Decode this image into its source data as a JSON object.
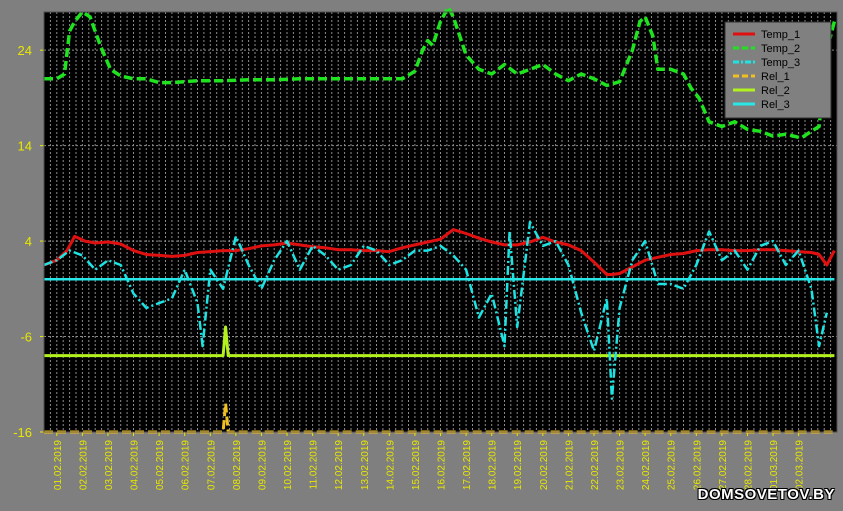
{
  "chart_data": {
    "type": "line",
    "title": "",
    "xlabel": "",
    "ylabel": "",
    "ylim": [
      -16,
      28
    ],
    "yticks": [
      24,
      14,
      4,
      -6,
      -16
    ],
    "xlim": [
      0,
      31
    ],
    "xticks": [
      "01.02.2019",
      "02.02.2019",
      "03.02.2019",
      "04.02.2019",
      "05.02.2019",
      "06.02.2019",
      "07.02.2019",
      "08.02.2019",
      "09.02.2019",
      "10.02.2019",
      "11.02.2019",
      "12.02.2019",
      "13.02.2019",
      "14.02.2019",
      "15.02.2019",
      "16.02.2019",
      "17.02.2019",
      "18.02.2019",
      "19.02.2019",
      "20.02.2019",
      "21.02.2019",
      "22.02.2019",
      "23.02.2019",
      "24.02.2019",
      "25.02.2019",
      "26.02.2019",
      "27.02.2019",
      "28.02.2019",
      "01.03.2019",
      "02.03.2019"
    ],
    "legend_position": "top-right",
    "background": "#000000",
    "grid_color": "#8c8c8c",
    "tick_label_color": "#e8e800",
    "series": [
      {
        "name": "Temp_1",
        "color": "#e01010",
        "dash": "solid",
        "x": [
          0,
          0.5,
          0.9,
          1.2,
          1.6,
          2.0,
          2.5,
          3.0,
          3.5,
          4.0,
          4.5,
          5.0,
          5.5,
          6.0,
          6.5,
          7.0,
          7.5,
          8.0,
          8.5,
          9.0,
          9.5,
          10.0,
          10.5,
          11.0,
          11.5,
          12.0,
          12.5,
          13.0,
          13.5,
          14.0,
          14.5,
          15.0,
          15.5,
          16.0,
          16.5,
          17.0,
          17.5,
          18.0,
          18.5,
          19.0,
          19.5,
          20.0,
          20.5,
          21.0,
          21.5,
          22.0,
          22.2,
          22.5,
          23.0,
          23.5,
          24.0,
          24.5,
          25.0,
          25.5,
          26.0,
          26.5,
          27.0,
          27.5,
          28.0,
          28.5,
          29.0,
          29.5,
          30.0,
          30.3,
          30.6,
          30.9
        ],
        "y": [
          1.5,
          2.0,
          3.0,
          4.5,
          4.0,
          3.8,
          3.9,
          3.7,
          3.0,
          2.6,
          2.5,
          2.4,
          2.5,
          2.8,
          2.9,
          3.0,
          3.0,
          3.2,
          3.5,
          3.6,
          3.8,
          3.6,
          3.4,
          3.3,
          3.1,
          3.1,
          3.0,
          3.0,
          2.9,
          3.3,
          3.6,
          3.9,
          4.2,
          5.2,
          4.8,
          4.3,
          3.9,
          3.6,
          3.6,
          3.9,
          4.4,
          3.9,
          3.6,
          3.0,
          1.8,
          0.5,
          0.5,
          0.6,
          1.3,
          2.0,
          2.3,
          2.6,
          2.7,
          3.0,
          3.1,
          3.1,
          3.0,
          3.0,
          3.1,
          3.1,
          3.0,
          2.9,
          2.8,
          2.6,
          1.5,
          3.0
        ]
      },
      {
        "name": "Temp_2",
        "color": "#1ee31e",
        "dash": "dashed",
        "x": [
          0,
          0.5,
          0.8,
          1.0,
          1.2,
          1.5,
          1.8,
          2.2,
          2.6,
          3.0,
          3.5,
          4.0,
          4.5,
          5.0,
          5.5,
          6.0,
          7.0,
          8.0,
          9.0,
          10.0,
          11.0,
          12.0,
          13.0,
          14.0,
          14.2,
          14.5,
          14.8,
          15.0,
          15.2,
          15.5,
          15.8,
          16.0,
          16.5,
          17.0,
          17.5,
          18.0,
          18.5,
          19.0,
          19.5,
          20.0,
          20.5,
          21.0,
          21.5,
          22.0,
          22.5,
          23.0,
          23.3,
          23.5,
          23.8,
          24.0,
          24.5,
          25.0,
          25.3,
          25.6,
          26.0,
          26.5,
          27.0,
          27.5,
          28.0,
          28.5,
          29.0,
          29.3,
          29.6,
          30.0,
          30.3,
          30.6,
          30.9
        ],
        "y": [
          21.0,
          21.0,
          21.5,
          26.0,
          27.0,
          28.0,
          27.5,
          24.5,
          22.0,
          21.3,
          21.0,
          21.0,
          20.6,
          20.6,
          20.7,
          20.8,
          20.8,
          20.9,
          20.9,
          21.0,
          21.0,
          21.0,
          21.0,
          21.0,
          21.3,
          21.8,
          24.0,
          25.0,
          24.5,
          27.0,
          28.5,
          27.5,
          23.5,
          22.0,
          21.5,
          22.5,
          21.5,
          22.0,
          22.5,
          21.5,
          20.8,
          21.5,
          21.0,
          20.3,
          20.7,
          24.0,
          27.0,
          27.5,
          25.5,
          22.0,
          22.0,
          21.5,
          20.0,
          19.0,
          16.5,
          16.0,
          16.5,
          15.7,
          15.5,
          15.0,
          15.2,
          15.0,
          14.8,
          15.5,
          16.0,
          24.0,
          27.0
        ]
      },
      {
        "name": "Temp_3",
        "color": "#1ee3e3",
        "dash": "dashdot",
        "x": [
          0,
          0.5,
          1.0,
          1.5,
          2.0,
          2.5,
          3.0,
          3.5,
          4.0,
          4.5,
          5.0,
          5.5,
          6.0,
          6.2,
          6.5,
          7.0,
          7.5,
          8.0,
          8.5,
          9.0,
          9.5,
          10.0,
          10.5,
          11.0,
          11.5,
          12.0,
          12.5,
          13.0,
          13.5,
          14.0,
          14.5,
          15.0,
          15.5,
          16.0,
          16.5,
          17.0,
          17.5,
          18.0,
          18.2,
          18.5,
          19.0,
          19.5,
          20.0,
          20.5,
          21.0,
          21.5,
          22.0,
          22.2,
          22.5,
          23.0,
          23.5,
          24.0,
          24.5,
          25.0,
          25.5,
          26.0,
          26.5,
          27.0,
          27.5,
          28.0,
          28.5,
          29.0,
          29.5,
          30.0,
          30.3,
          30.6
        ],
        "y": [
          1.5,
          2.0,
          3.0,
          2.5,
          1.0,
          2.0,
          1.5,
          -1.5,
          -3.0,
          -2.5,
          -2.0,
          1.0,
          -2.5,
          -7.0,
          1.0,
          -1.0,
          4.5,
          1.5,
          -1.0,
          2.0,
          4.0,
          1.0,
          3.5,
          2.5,
          1.0,
          1.5,
          3.5,
          3.0,
          1.5,
          2.0,
          3.0,
          3.0,
          3.5,
          2.5,
          1.0,
          -4.0,
          -1.5,
          -7.0,
          5.0,
          -5.0,
          6.0,
          3.5,
          4.0,
          1.5,
          -3.5,
          -7.5,
          -2.0,
          -12.5,
          -3.0,
          2.0,
          4.0,
          -0.5,
          -0.5,
          -1.0,
          1.5,
          5.0,
          2.0,
          3.0,
          1.0,
          3.5,
          4.0,
          1.5,
          3.0,
          -1.0,
          -7.0,
          -3.5
        ]
      },
      {
        "name": "Rel_1",
        "color": "#f0c020",
        "dash": "dashed",
        "x": [
          0,
          7.0,
          7.1,
          7.2,
          7.3,
          30.9
        ],
        "y": [
          -16,
          -16,
          -13.0,
          -16,
          -16,
          -16
        ]
      },
      {
        "name": "Rel_2",
        "color": "#b2f01e",
        "dash": "solid",
        "x": [
          0,
          7.0,
          7.1,
          7.2,
          7.3,
          30.9
        ],
        "y": [
          -8,
          -8,
          -5.0,
          -8,
          -8,
          -8
        ]
      },
      {
        "name": "Rel_3",
        "color": "#28e6e6",
        "dash": "solid",
        "x": [
          0,
          30.9
        ],
        "y": [
          0,
          0
        ]
      }
    ]
  },
  "watermark": "DOMSOVETOV.BY"
}
